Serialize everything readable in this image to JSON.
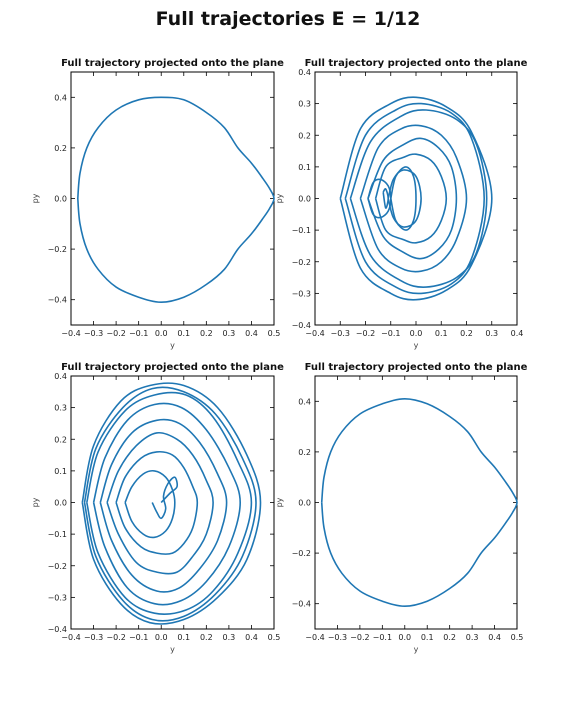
{
  "title": "Full trajectories E = 1/12",
  "chart_data": [
    {
      "type": "line",
      "title": "Full trajectory projected onto the plane",
      "xlabel": "y",
      "ylabel": "py",
      "xlim": [
        -0.4,
        0.5
      ],
      "ylim": [
        -0.5,
        0.5
      ],
      "xticks": [
        -0.4,
        -0.3,
        -0.2,
        -0.1,
        0.0,
        0.1,
        0.2,
        0.3,
        0.4,
        0.5
      ],
      "yticks": [
        -0.4,
        -0.2,
        0.0,
        0.2,
        0.4
      ],
      "xtick_labels": [
        "−0.4",
        "−0.3",
        "−0.2",
        "−0.1",
        "0.0",
        "0.1",
        "0.2",
        "0.3",
        "0.4",
        "0.5"
      ],
      "ytick_labels": [
        "−0.4",
        "−0.2",
        "0.0",
        "0.2",
        "0.4"
      ],
      "color": "#1f77b4",
      "series": [
        {
          "x": [
            -0.37,
            -0.36,
            -0.33,
            -0.28,
            -0.2,
            -0.1,
            0.0,
            0.1,
            0.2,
            0.28,
            0.34,
            0.4,
            0.45,
            0.48,
            0.5,
            0.48,
            0.45,
            0.4,
            0.34,
            0.28,
            0.2,
            0.1,
            0.0,
            -0.1,
            -0.2,
            -0.28,
            -0.33,
            -0.36,
            -0.37
          ],
          "y": [
            0.0,
            0.1,
            0.2,
            0.28,
            0.35,
            0.39,
            0.4,
            0.39,
            0.34,
            0.28,
            0.2,
            0.14,
            0.08,
            0.04,
            0.0,
            -0.04,
            -0.08,
            -0.14,
            -0.2,
            -0.28,
            -0.34,
            -0.39,
            -0.41,
            -0.39,
            -0.35,
            -0.28,
            -0.2,
            -0.1,
            0.0
          ]
        }
      ]
    },
    {
      "type": "line",
      "title": "Full trajectory projected onto the plane",
      "xlabel": "y",
      "ylabel": "py",
      "xlim": [
        -0.4,
        0.4
      ],
      "ylim": [
        -0.4,
        0.4
      ],
      "xticks": [
        -0.4,
        -0.3,
        -0.2,
        -0.1,
        0.0,
        0.1,
        0.2,
        0.3,
        0.4
      ],
      "yticks": [
        -0.4,
        -0.3,
        -0.2,
        -0.1,
        0.0,
        0.1,
        0.2,
        0.3,
        0.4
      ],
      "xtick_labels": [
        "−0.4",
        "−0.3",
        "−0.2",
        "−0.1",
        "0.0",
        "0.1",
        "0.2",
        "0.3",
        "0.4"
      ],
      "ytick_labels": [
        "−0.4",
        "−0.3",
        "−0.2",
        "−0.1",
        "0.0",
        "0.1",
        "0.2",
        "0.3",
        "0.4"
      ],
      "color": "#1f77b4",
      "series": [
        {
          "x": [
            -0.3,
            -0.22,
            -0.1,
            0.0,
            0.12,
            0.22,
            0.3,
            0.22,
            0.12,
            0.0,
            -0.1,
            -0.22,
            -0.3
          ],
          "y": [
            0.0,
            0.22,
            0.3,
            0.32,
            0.29,
            0.21,
            0.0,
            -0.21,
            -0.29,
            -0.32,
            -0.3,
            -0.22,
            0.0
          ]
        },
        {
          "x": [
            -0.28,
            -0.2,
            -0.08,
            0.02,
            0.14,
            0.22,
            0.27,
            0.22,
            0.14,
            0.02,
            -0.08,
            -0.2,
            -0.28
          ],
          "y": [
            0.0,
            0.2,
            0.28,
            0.3,
            0.27,
            0.19,
            0.0,
            -0.19,
            -0.27,
            -0.3,
            -0.28,
            -0.2,
            0.0
          ]
        },
        {
          "x": [
            -0.26,
            -0.18,
            -0.06,
            0.04,
            0.16,
            0.24,
            0.28,
            0.24,
            0.16,
            0.04,
            -0.06,
            -0.18,
            -0.26
          ],
          "y": [
            0.0,
            0.18,
            0.26,
            0.28,
            0.25,
            0.17,
            0.0,
            -0.17,
            -0.25,
            -0.28,
            -0.26,
            -0.18,
            0.0
          ]
        },
        {
          "x": [
            -0.22,
            -0.15,
            -0.06,
            0.02,
            0.1,
            0.16,
            0.2,
            0.16,
            0.1,
            0.02,
            -0.06,
            -0.15,
            -0.22
          ],
          "y": [
            0.0,
            0.16,
            0.22,
            0.23,
            0.2,
            0.13,
            0.0,
            -0.13,
            -0.2,
            -0.23,
            -0.22,
            -0.16,
            0.0
          ]
        },
        {
          "x": [
            -0.19,
            -0.13,
            -0.05,
            0.02,
            0.09,
            0.14,
            0.16,
            0.14,
            0.09,
            0.02,
            -0.05,
            -0.13,
            -0.19
          ],
          "y": [
            0.0,
            0.12,
            0.17,
            0.19,
            0.16,
            0.1,
            0.0,
            -0.1,
            -0.16,
            -0.19,
            -0.17,
            -0.12,
            0.0
          ]
        },
        {
          "x": [
            -0.16,
            -0.12,
            -0.05,
            0.0,
            0.06,
            0.1,
            0.12,
            0.1,
            0.06,
            0.0,
            -0.05,
            -0.12,
            -0.16
          ],
          "y": [
            0.0,
            0.1,
            0.13,
            0.14,
            0.12,
            0.07,
            0.0,
            -0.07,
            -0.12,
            -0.14,
            -0.13,
            -0.1,
            0.0
          ]
        },
        {
          "x": [
            -0.19,
            -0.17,
            -0.14,
            -0.11,
            -0.1,
            -0.11,
            -0.14,
            -0.17,
            -0.19
          ],
          "y": [
            0.0,
            0.05,
            0.06,
            0.04,
            0.0,
            -0.04,
            -0.06,
            -0.05,
            0.0
          ]
        },
        {
          "x": [
            -0.11,
            -0.09,
            -0.05,
            0.0,
            0.02,
            0.0,
            -0.05,
            -0.09,
            -0.11
          ],
          "y": [
            0.0,
            0.06,
            0.09,
            0.07,
            0.0,
            -0.07,
            -0.09,
            -0.06,
            0.0
          ]
        },
        {
          "x": [
            -0.1,
            -0.08,
            -0.04,
            -0.01,
            0.0,
            -0.01,
            -0.04,
            -0.08,
            -0.1
          ],
          "y": [
            0.0,
            0.07,
            0.1,
            0.07,
            0.0,
            -0.07,
            -0.1,
            -0.07,
            0.0
          ]
        },
        {
          "x": [
            -0.13,
            -0.12,
            -0.11,
            -0.12,
            -0.13
          ],
          "y": [
            0.02,
            0.03,
            0.0,
            -0.03,
            0.02
          ]
        }
      ]
    },
    {
      "type": "line",
      "title": "Full trajectory projected onto the plane",
      "xlabel": "y",
      "ylabel": "py",
      "xlim": [
        -0.4,
        0.5
      ],
      "ylim": [
        -0.4,
        0.4
      ],
      "xticks": [
        -0.4,
        -0.3,
        -0.2,
        -0.1,
        0.0,
        0.1,
        0.2,
        0.3,
        0.4,
        0.5
      ],
      "yticks": [
        -0.4,
        -0.3,
        -0.2,
        -0.1,
        0.0,
        0.1,
        0.2,
        0.3,
        0.4
      ],
      "xtick_labels": [
        "−0.4",
        "−0.3",
        "−0.2",
        "−0.1",
        "0.0",
        "0.1",
        "0.2",
        "0.3",
        "0.4",
        "0.5"
      ],
      "ytick_labels": [
        "−0.4",
        "−0.3",
        "−0.2",
        "−0.1",
        "0.0",
        "0.1",
        "0.2",
        "0.3",
        "0.4"
      ],
      "color": "#1f77b4",
      "series": [
        {
          "x": [
            -0.35,
            -0.3,
            -0.18,
            -0.05,
            0.1,
            0.25,
            0.38,
            0.44,
            0.38,
            0.25,
            0.1,
            -0.05,
            -0.18,
            -0.3,
            -0.35
          ],
          "y": [
            0.0,
            0.18,
            0.32,
            0.37,
            0.37,
            0.3,
            0.15,
            0.0,
            -0.18,
            -0.3,
            -0.37,
            -0.38,
            -0.32,
            -0.18,
            0.0
          ]
        },
        {
          "x": [
            -0.34,
            -0.29,
            -0.17,
            -0.04,
            0.1,
            0.24,
            0.36,
            0.42,
            0.36,
            0.24,
            0.1,
            -0.04,
            -0.17,
            -0.29,
            -0.34
          ],
          "y": [
            0.0,
            0.17,
            0.3,
            0.36,
            0.35,
            0.28,
            0.14,
            0.0,
            -0.17,
            -0.29,
            -0.36,
            -0.37,
            -0.31,
            -0.17,
            0.0
          ]
        },
        {
          "x": [
            -0.33,
            -0.28,
            -0.16,
            -0.03,
            0.11,
            0.23,
            0.34,
            0.4,
            0.34,
            0.23,
            0.11,
            -0.03,
            -0.16,
            -0.28,
            -0.33
          ],
          "y": [
            0.0,
            0.16,
            0.29,
            0.34,
            0.34,
            0.27,
            0.13,
            0.0,
            -0.16,
            -0.28,
            -0.34,
            -0.35,
            -0.3,
            -0.16,
            0.0
          ]
        },
        {
          "x": [
            -0.3,
            -0.25,
            -0.15,
            -0.03,
            0.09,
            0.2,
            0.3,
            0.35,
            0.3,
            0.2,
            0.09,
            -0.03,
            -0.15,
            -0.25,
            -0.3
          ],
          "y": [
            0.0,
            0.14,
            0.26,
            0.31,
            0.3,
            0.23,
            0.11,
            0.0,
            -0.14,
            -0.25,
            -0.31,
            -0.32,
            -0.27,
            -0.14,
            0.0
          ]
        },
        {
          "x": [
            -0.27,
            -0.22,
            -0.13,
            -0.02,
            0.08,
            0.17,
            0.25,
            0.29,
            0.25,
            0.17,
            0.08,
            -0.02,
            -0.13,
            -0.22,
            -0.27
          ],
          "y": [
            0.0,
            0.12,
            0.22,
            0.26,
            0.25,
            0.19,
            0.09,
            0.0,
            -0.12,
            -0.21,
            -0.27,
            -0.28,
            -0.23,
            -0.12,
            0.0
          ]
        },
        {
          "x": [
            -0.24,
            -0.19,
            -0.11,
            -0.02,
            0.07,
            0.14,
            0.2,
            0.23,
            0.2,
            0.14,
            0.07,
            -0.02,
            -0.11,
            -0.19,
            -0.24
          ],
          "y": [
            0.0,
            0.1,
            0.18,
            0.22,
            0.2,
            0.15,
            0.07,
            0.0,
            -0.1,
            -0.17,
            -0.22,
            -0.22,
            -0.19,
            -0.1,
            0.0
          ]
        },
        {
          "x": [
            -0.2,
            -0.16,
            -0.09,
            -0.02,
            0.05,
            0.1,
            0.14,
            0.16,
            0.14,
            0.1,
            0.05,
            -0.02,
            -0.09,
            -0.16,
            -0.2
          ],
          "y": [
            0.0,
            0.08,
            0.14,
            0.16,
            0.15,
            0.11,
            0.05,
            0.0,
            -0.08,
            -0.13,
            -0.16,
            -0.16,
            -0.14,
            -0.08,
            0.0
          ]
        },
        {
          "x": [
            -0.16,
            -0.13,
            -0.08,
            -0.03,
            0.02,
            0.05,
            0.06,
            0.05,
            0.02,
            -0.03,
            -0.08,
            -0.13,
            -0.16
          ],
          "y": [
            0.0,
            0.05,
            0.09,
            0.1,
            0.08,
            0.04,
            0.0,
            -0.05,
            -0.09,
            -0.11,
            -0.1,
            -0.06,
            0.0
          ]
        },
        {
          "x": [
            0.0,
            0.04,
            0.07,
            0.06,
            0.03,
            0.01,
            0.02,
            0.0,
            -0.02,
            -0.04
          ],
          "y": [
            0.0,
            0.03,
            0.05,
            0.08,
            0.06,
            0.02,
            -0.02,
            -0.05,
            -0.03,
            0.0
          ]
        }
      ]
    },
    {
      "type": "line",
      "title": "Full trajectory projected onto the plane",
      "xlabel": "y",
      "ylabel": "py",
      "xlim": [
        -0.4,
        0.5
      ],
      "ylim": [
        -0.5,
        0.5
      ],
      "xticks": [
        -0.4,
        -0.3,
        -0.2,
        -0.1,
        0.0,
        0.1,
        0.2,
        0.3,
        0.4,
        0.5
      ],
      "yticks": [
        -0.4,
        -0.2,
        0.0,
        0.2,
        0.4
      ],
      "xtick_labels": [
        "−0.4",
        "−0.3",
        "−0.2",
        "−0.1",
        "0.0",
        "0.1",
        "0.2",
        "0.3",
        "0.4",
        "0.5"
      ],
      "ytick_labels": [
        "−0.4",
        "−0.2",
        "0.0",
        "0.2",
        "0.4"
      ],
      "color": "#1f77b4",
      "series": [
        {
          "x": [
            -0.37,
            -0.36,
            -0.33,
            -0.28,
            -0.2,
            -0.1,
            0.0,
            0.1,
            0.2,
            0.28,
            0.34,
            0.4,
            0.45,
            0.48,
            0.5,
            0.48,
            0.45,
            0.4,
            0.34,
            0.28,
            0.2,
            0.1,
            0.0,
            -0.1,
            -0.2,
            -0.28,
            -0.33,
            -0.36,
            -0.37
          ],
          "y": [
            0.0,
            0.1,
            0.2,
            0.28,
            0.35,
            0.39,
            0.41,
            0.39,
            0.34,
            0.28,
            0.2,
            0.14,
            0.08,
            0.04,
            0.0,
            -0.04,
            -0.08,
            -0.14,
            -0.2,
            -0.28,
            -0.34,
            -0.39,
            -0.41,
            -0.39,
            -0.35,
            -0.28,
            -0.2,
            -0.1,
            0.0
          ]
        }
      ]
    }
  ]
}
